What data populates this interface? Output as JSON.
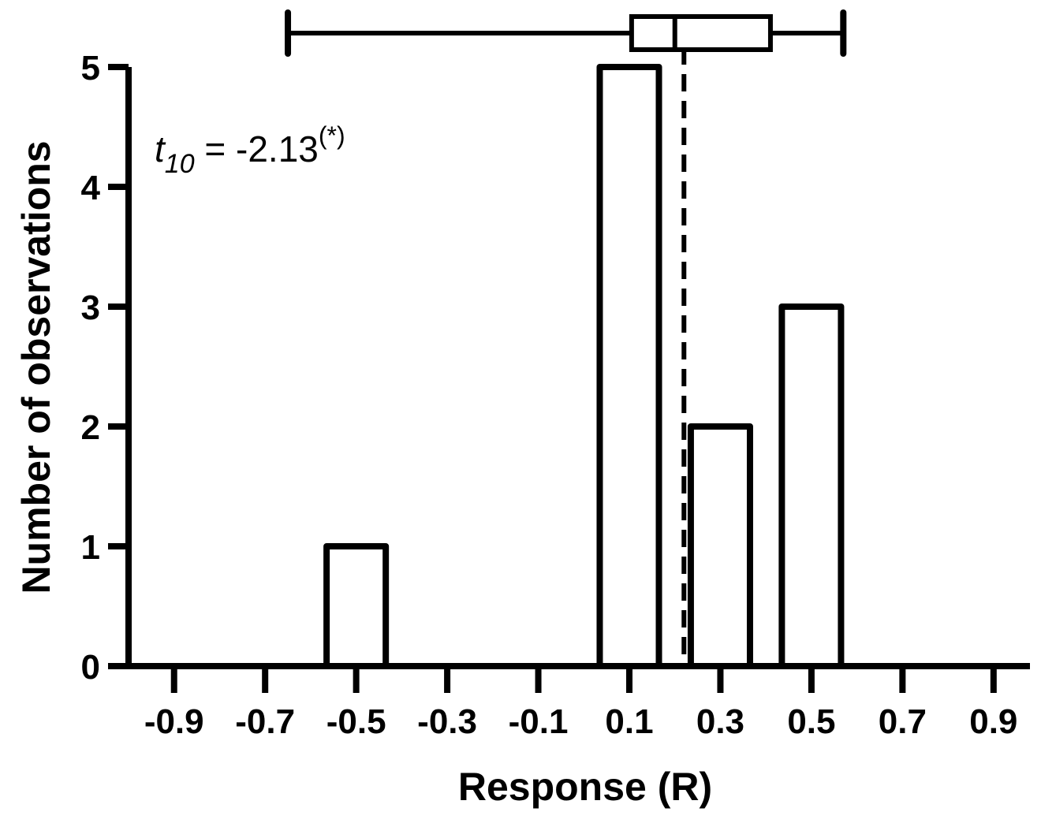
{
  "chart_data": {
    "type": "bar",
    "xlabel": "Response (R)",
    "ylabel": "Number of observations",
    "x_ticks": [
      "-0.9",
      "-0.7",
      "-0.5",
      "-0.3",
      "-0.1",
      "0.1",
      "0.3",
      "0.5",
      "0.7",
      "0.9"
    ],
    "x_tick_values": [
      -0.9,
      -0.7,
      -0.5,
      -0.3,
      -0.1,
      0.1,
      0.3,
      0.5,
      0.7,
      0.9
    ],
    "xlim": [
      -1.0,
      0.98
    ],
    "y_ticks": [
      "0",
      "1",
      "2",
      "3",
      "4",
      "5"
    ],
    "ylim": [
      0,
      5
    ],
    "bin_width": 0.13,
    "bars": [
      {
        "x": -0.5,
        "value": 1
      },
      {
        "x": 0.1,
        "value": 5
      },
      {
        "x": 0.3,
        "value": 2
      },
      {
        "x": 0.5,
        "value": 3
      }
    ],
    "reference_line": {
      "x": 0.22,
      "style": "dashed"
    },
    "boxplot": {
      "min": -0.65,
      "q1": 0.105,
      "median": 0.2,
      "q3": 0.41,
      "max": 0.57
    },
    "annotation": {
      "t": "t",
      "sub": "10",
      "value": " = -2.13",
      "sup": "(*)"
    },
    "grid": false,
    "legend": "none"
  }
}
